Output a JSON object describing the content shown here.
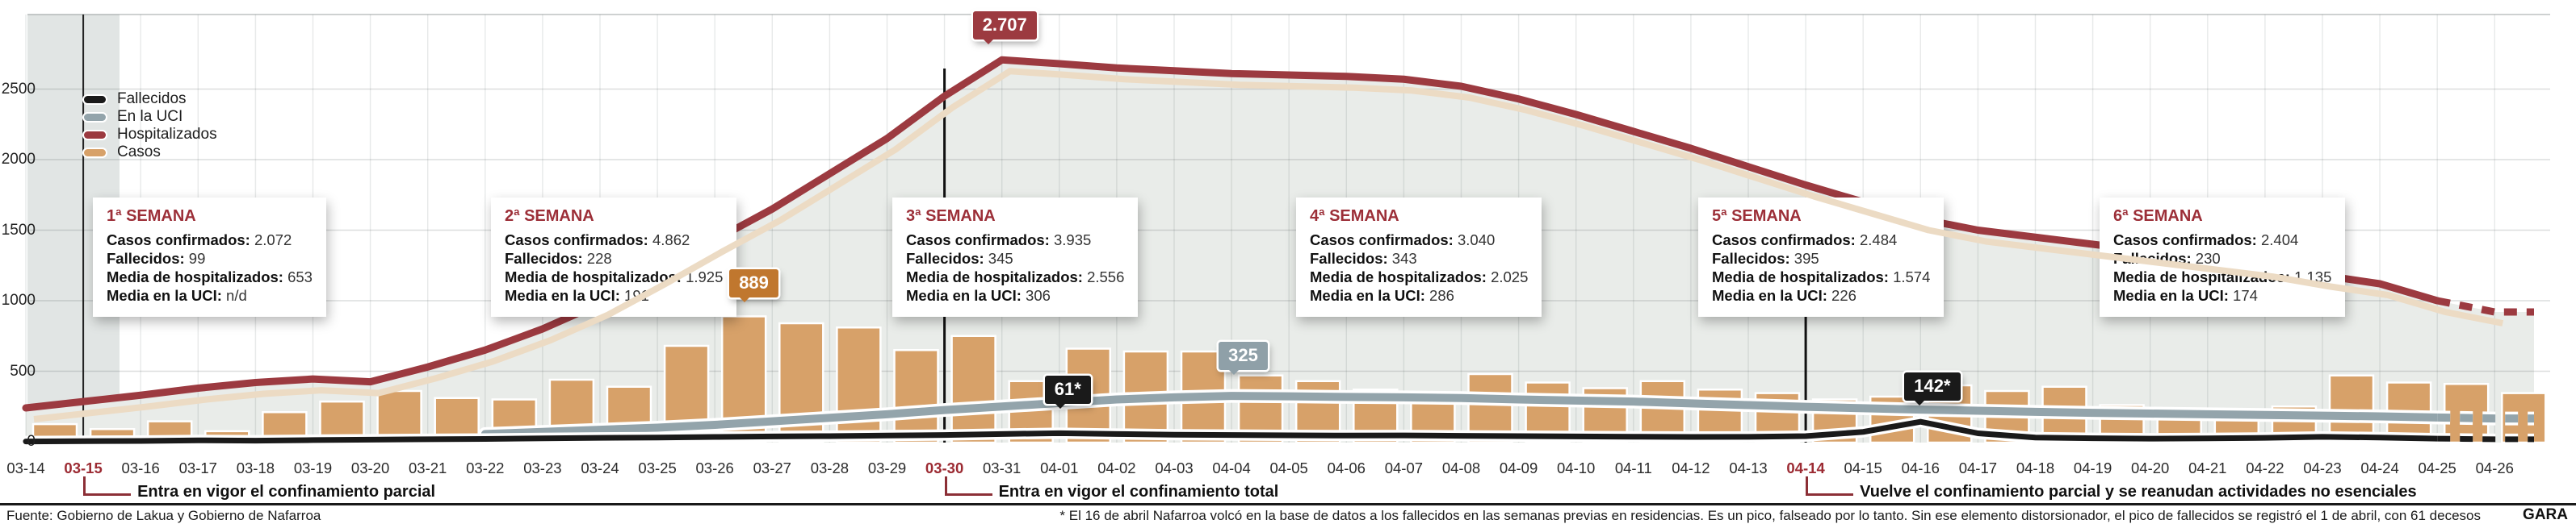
{
  "meta": {
    "source": "Fuente: Gobierno de Lakua y Gobierno de Nafarroa",
    "footnote": "* El 16 de abril Nafarroa volcó en la base de datos a los fallecidos en las semanas previas en residencias. Es un pico, falseado por lo tanto. Sin ese elemento distorsionador, el pico de fallecidos se registró el 1 de abril, con 61 decesos",
    "brand": "GARA"
  },
  "colors": {
    "bar": "#d7a169",
    "hospitalizados": "#9c3a40",
    "uci": "#93a4ab",
    "fallecidos": "#1a1a1a",
    "area": "#e9ece9",
    "band": "#e1e5e4",
    "accent_red": "#9c2f38",
    "beige_shadow": "#ecdbc4",
    "callout_orange": "#c0772e",
    "callout_gray": "#8fa0a8"
  },
  "legend": [
    {
      "label": "Fallecidos",
      "color": "#1a1a1a"
    },
    {
      "label": "En la UCI",
      "color": "#93a4ab"
    },
    {
      "label": "Hospitalizados",
      "color": "#9c3a40"
    },
    {
      "label": "Casos",
      "color": "#d7a169"
    }
  ],
  "chart_data": {
    "type": "bar+line combo",
    "x": [
      "03-14",
      "03-15",
      "03-16",
      "03-17",
      "03-18",
      "03-19",
      "03-20",
      "03-21",
      "03-22",
      "03-23",
      "03-24",
      "03-25",
      "03-26",
      "03-27",
      "03-28",
      "03-29",
      "03-30",
      "03-31",
      "04-01",
      "04-02",
      "04-03",
      "04-04",
      "04-05",
      "04-06",
      "04-07",
      "04-08",
      "04-09",
      "04-10",
      "04-11",
      "04-12",
      "04-13",
      "04-14",
      "04-15",
      "04-16",
      "04-17",
      "04-18",
      "04-19",
      "04-20",
      "04-21",
      "04-22",
      "04-23",
      "04-24",
      "04-25",
      "04-26"
    ],
    "highlight_dates": [
      "03-15",
      "03-30",
      "04-14"
    ],
    "yticks": [
      0,
      500,
      1000,
      1500,
      2000,
      2500
    ],
    "ylim": [
      0,
      2900
    ],
    "series": [
      {
        "name": "Casos",
        "type": "bar",
        "values": [
          125,
          90,
          145,
          75,
          210,
          285,
          360,
          310,
          300,
          440,
          390,
          680,
          889,
          840,
          810,
          650,
          750,
          430,
          660,
          640,
          640,
          470,
          430,
          370,
          345,
          480,
          420,
          380,
          430,
          370,
          345,
          300,
          320,
          400,
          360,
          390,
          260,
          230,
          210,
          250,
          470,
          420,
          410,
          345
        ]
      },
      {
        "name": "Hospitalizados",
        "type": "line",
        "values": [
          240,
          285,
          330,
          380,
          420,
          445,
          425,
          530,
          650,
          800,
          980,
          1200,
          1430,
          1650,
          1900,
          2150,
          2450,
          2707,
          2680,
          2650,
          2630,
          2610,
          2600,
          2590,
          2570,
          2520,
          2430,
          2320,
          2200,
          2080,
          1950,
          1820,
          1700,
          1580,
          1500,
          1450,
          1400,
          1350,
          1300,
          1250,
          1180,
          1120,
          1000,
          920
        ]
      },
      {
        "name": "En la UCI",
        "type": "line",
        "values": [
          null,
          null,
          null,
          null,
          null,
          null,
          null,
          null,
          55,
          70,
          85,
          100,
          120,
          145,
          170,
          195,
          225,
          250,
          275,
          300,
          315,
          325,
          322,
          318,
          315,
          310,
          300,
          292,
          285,
          272,
          260,
          248,
          238,
          228,
          220,
          212,
          205,
          200,
          195,
          190,
          185,
          180,
          172,
          165
        ]
      },
      {
        "name": "Fallecidos",
        "type": "line",
        "values": [
          2,
          4,
          6,
          10,
          8,
          12,
          15,
          18,
          20,
          24,
          28,
          30,
          34,
          38,
          40,
          44,
          48,
          55,
          61,
          55,
          50,
          48,
          46,
          44,
          45,
          42,
          40,
          38,
          36,
          34,
          35,
          40,
          70,
          142,
          60,
          30,
          25,
          22,
          24,
          28,
          35,
          30,
          22,
          18
        ]
      }
    ],
    "annotations": [
      {
        "text": "2.707",
        "series": "Hospitalizados",
        "date": "03-31",
        "bg": "#9c3a40"
      },
      {
        "text": "889",
        "series": "Casos",
        "date": "03-26",
        "bg": "#c0772e"
      },
      {
        "text": "61*",
        "series": "Fallecidos",
        "date": "04-01",
        "bg": "#1a1a1a"
      },
      {
        "text": "325",
        "series": "En la UCI",
        "date": "04-04",
        "bg": "#8fa0a8"
      },
      {
        "text": "142*",
        "series": "Fallecidos",
        "date": "04-16",
        "bg": "#1a1a1a"
      }
    ]
  },
  "week_boxes": [
    {
      "title": "1ª SEMANA",
      "rows": [
        {
          "label": "Casos confirmados:",
          "value": "2.072"
        },
        {
          "label": "Fallecidos:",
          "value": "99"
        },
        {
          "label": "Media de hospitalizados:",
          "value": "653"
        },
        {
          "label": "Media en la UCI:",
          "value": "n/d"
        }
      ]
    },
    {
      "title": "2ª SEMANA",
      "rows": [
        {
          "label": "Casos confirmados:",
          "value": "4.862"
        },
        {
          "label": "Fallecidos:",
          "value": "228"
        },
        {
          "label": "Media de hospitalizados:",
          "value": "1.925"
        },
        {
          "label": "Media en la UCI:",
          "value": "191"
        }
      ]
    },
    {
      "title": "3ª SEMANA",
      "rows": [
        {
          "label": "Casos confirmados:",
          "value": "3.935"
        },
        {
          "label": "Fallecidos:",
          "value": "345"
        },
        {
          "label": "Media de hospitalizados:",
          "value": "2.556"
        },
        {
          "label": "Media en la UCI:",
          "value": "306"
        }
      ]
    },
    {
      "title": "4ª SEMANA",
      "rows": [
        {
          "label": "Casos confirmados:",
          "value": "3.040"
        },
        {
          "label": "Fallecidos:",
          "value": "343"
        },
        {
          "label": "Media de hospitalizados:",
          "value": "2.025"
        },
        {
          "label": "Media en la UCI:",
          "value": "286"
        }
      ]
    },
    {
      "title": "5ª SEMANA",
      "rows": [
        {
          "label": "Casos confirmados:",
          "value": "2.484"
        },
        {
          "label": "Fallecidos:",
          "value": "395"
        },
        {
          "label": "Media de hospitalizados:",
          "value": "1.574"
        },
        {
          "label": "Media en la UCI:",
          "value": "226"
        }
      ]
    },
    {
      "title": "6ª SEMANA",
      "rows": [
        {
          "label": "Casos confirmados:",
          "value": "2.404"
        },
        {
          "label": "Fallecidos:",
          "value": "230"
        },
        {
          "label": "Media de hospitalizados:",
          "value": "1.135"
        },
        {
          "label": "Media en la UCI:",
          "value": "174"
        }
      ]
    }
  ],
  "events": [
    {
      "date": "03-15",
      "text": "Entra en vigor el confinamiento parcial"
    },
    {
      "date": "03-30",
      "text": "Entra en vigor el confinamiento total"
    },
    {
      "date": "04-14",
      "text": "Vuelve el confinamiento parcial y se reanudan actividades no esenciales"
    }
  ]
}
